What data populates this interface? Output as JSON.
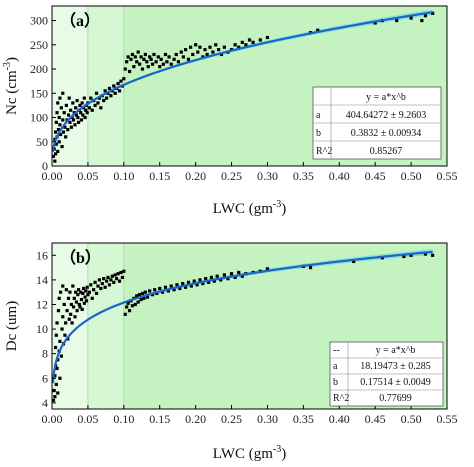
{
  "colors": {
    "band_light": "#e8fbe6",
    "band_mid": "#d6f7d3",
    "band_main": "#c4f2c0",
    "fit_line": "#1a66c8",
    "confidence": "#5fd3e8",
    "points": "#000000"
  },
  "chart_data": [
    {
      "type": "scatter",
      "panel_label": "（a）",
      "xlabel_main": "LWC (gm",
      "xlabel_sup": "-3",
      "xlabel_end": ")",
      "ylabel_main": "Nc (cm",
      "ylabel_sup": "-3",
      "ylabel_end": ")",
      "xlim": [
        0,
        0.55
      ],
      "ylim": [
        0,
        330
      ],
      "xticks": [
        "0.00",
        "0.05",
        "0.10",
        "0.15",
        "0.20",
        "0.25",
        "0.30",
        "0.35",
        "0.40",
        "0.45",
        "0.50",
        "0.55"
      ],
      "yticks": [
        "0",
        "50",
        "100",
        "150",
        "200",
        "250",
        "300"
      ],
      "ytick_values": [
        0,
        50,
        100,
        150,
        200,
        250,
        300
      ],
      "bands": [
        0.05,
        0.1
      ],
      "fit": {
        "a": 404.64272,
        "b": 0.3832
      },
      "fit_table": {
        "header_left": "",
        "header": "y = a*x^b",
        "rows": [
          {
            "label": "a",
            "value": "404.64272 ± 9.2603"
          },
          {
            "label": "b",
            "value": "0.3832 ± 0.00934"
          },
          {
            "label": "R^2",
            "value": "0.85267"
          }
        ]
      },
      "points": [
        [
          0.002,
          20
        ],
        [
          0.003,
          35
        ],
        [
          0.004,
          10
        ],
        [
          0.004,
          55
        ],
        [
          0.005,
          70
        ],
        [
          0.005,
          25
        ],
        [
          0.006,
          90
        ],
        [
          0.006,
          45
        ],
        [
          0.007,
          110
        ],
        [
          0.007,
          60
        ],
        [
          0.008,
          130
        ],
        [
          0.008,
          30
        ],
        [
          0.009,
          75
        ],
        [
          0.01,
          100
        ],
        [
          0.01,
          50
        ],
        [
          0.011,
          140
        ],
        [
          0.011,
          85
        ],
        [
          0.012,
          65
        ],
        [
          0.013,
          120
        ],
        [
          0.014,
          40
        ],
        [
          0.015,
          95
        ],
        [
          0.015,
          150
        ],
        [
          0.016,
          70
        ],
        [
          0.017,
          110
        ],
        [
          0.018,
          80
        ],
        [
          0.019,
          60
        ],
        [
          0.02,
          125
        ],
        [
          0.021,
          95
        ],
        [
          0.022,
          75
        ],
        [
          0.023,
          105
        ],
        [
          0.024,
          140
        ],
        [
          0.025,
          90
        ],
        [
          0.026,
          115
        ],
        [
          0.027,
          80
        ],
        [
          0.028,
          100
        ],
        [
          0.029,
          130
        ],
        [
          0.03,
          95
        ],
        [
          0.031,
          110
        ],
        [
          0.032,
          85
        ],
        [
          0.033,
          120
        ],
        [
          0.034,
          105
        ],
        [
          0.035,
          135
        ],
        [
          0.036,
          100
        ],
        [
          0.037,
          90
        ],
        [
          0.038,
          115
        ],
        [
          0.039,
          125
        ],
        [
          0.04,
          110
        ],
        [
          0.041,
          95
        ],
        [
          0.042,
          130
        ],
        [
          0.043,
          105
        ],
        [
          0.044,
          120
        ],
        [
          0.045,
          140
        ],
        [
          0.046,
          100
        ],
        [
          0.047,
          115
        ],
        [
          0.048,
          125
        ],
        [
          0.049,
          110
        ],
        [
          0.05,
          130
        ],
        [
          0.052,
          120
        ],
        [
          0.054,
          140
        ],
        [
          0.056,
          115
        ],
        [
          0.058,
          135
        ],
        [
          0.06,
          125
        ],
        [
          0.062,
          150
        ],
        [
          0.064,
          130
        ],
        [
          0.066,
          140
        ],
        [
          0.068,
          120
        ],
        [
          0.07,
          145
        ],
        [
          0.072,
          135
        ],
        [
          0.074,
          155
        ],
        [
          0.076,
          140
        ],
        [
          0.078,
          150
        ],
        [
          0.08,
          160
        ],
        [
          0.082,
          145
        ],
        [
          0.084,
          155
        ],
        [
          0.086,
          165
        ],
        [
          0.088,
          150
        ],
        [
          0.09,
          160
        ],
        [
          0.092,
          170
        ],
        [
          0.094,
          155
        ],
        [
          0.096,
          175
        ],
        [
          0.098,
          165
        ],
        [
          0.1,
          180
        ],
        [
          0.102,
          200
        ],
        [
          0.104,
          215
        ],
        [
          0.106,
          225
        ],
        [
          0.108,
          195
        ],
        [
          0.11,
          220
        ],
        [
          0.112,
          230
        ],
        [
          0.114,
          205
        ],
        [
          0.116,
          225
        ],
        [
          0.118,
          215
        ],
        [
          0.12,
          235
        ],
        [
          0.122,
          210
        ],
        [
          0.124,
          225
        ],
        [
          0.126,
          200
        ],
        [
          0.128,
          220
        ],
        [
          0.13,
          230
        ],
        [
          0.132,
          215
        ],
        [
          0.134,
          205
        ],
        [
          0.136,
          225
        ],
        [
          0.138,
          220
        ],
        [
          0.14,
          210
        ],
        [
          0.142,
          230
        ],
        [
          0.145,
          215
        ],
        [
          0.148,
          225
        ],
        [
          0.15,
          205
        ],
        [
          0.152,
          220
        ],
        [
          0.155,
          210
        ],
        [
          0.158,
          230
        ],
        [
          0.16,
          215
        ],
        [
          0.163,
          225
        ],
        [
          0.166,
          210
        ],
        [
          0.17,
          220
        ],
        [
          0.173,
          230
        ],
        [
          0.176,
          215
        ],
        [
          0.18,
          235
        ],
        [
          0.183,
          225
        ],
        [
          0.186,
          240
        ],
        [
          0.19,
          220
        ],
        [
          0.193,
          245
        ],
        [
          0.196,
          230
        ],
        [
          0.2,
          250
        ],
        [
          0.203,
          235
        ],
        [
          0.206,
          245
        ],
        [
          0.21,
          225
        ],
        [
          0.213,
          240
        ],
        [
          0.216,
          230
        ],
        [
          0.22,
          245
        ],
        [
          0.224,
          235
        ],
        [
          0.228,
          250
        ],
        [
          0.232,
          240
        ],
        [
          0.236,
          230
        ],
        [
          0.24,
          245
        ],
        [
          0.245,
          235
        ],
        [
          0.25,
          240
        ],
        [
          0.255,
          250
        ],
        [
          0.26,
          245
        ],
        [
          0.265,
          255
        ],
        [
          0.27,
          250
        ],
        [
          0.275,
          260
        ],
        [
          0.28,
          255
        ],
        [
          0.29,
          260
        ],
        [
          0.3,
          265
        ],
        [
          0.36,
          275
        ],
        [
          0.37,
          280
        ],
        [
          0.45,
          295
        ],
        [
          0.46,
          300
        ],
        [
          0.48,
          300
        ],
        [
          0.5,
          305
        ],
        [
          0.52,
          310
        ],
        [
          0.53,
          315
        ],
        [
          0.515,
          300
        ]
      ]
    },
    {
      "type": "scatter",
      "panel_label": "（b）",
      "xlabel_main": "LWC (gm",
      "xlabel_sup": "-3",
      "xlabel_end": ")",
      "ylabel_main": "Dc (um)",
      "ylabel_sup": "",
      "ylabel_end": "",
      "xlim": [
        0,
        0.55
      ],
      "ylim": [
        3.5,
        17
      ],
      "xticks": [
        "0.00",
        "0.05",
        "0.10",
        "0.15",
        "0.20",
        "0.25",
        "0.30",
        "0.35",
        "0.40",
        "0.45",
        "0.50",
        "0.55"
      ],
      "yticks": [
        "4",
        "6",
        "8",
        "10",
        "12",
        "14",
        "16"
      ],
      "ytick_values": [
        4,
        6,
        8,
        10,
        12,
        14,
        16
      ],
      "bands": [
        0.05,
        0.1
      ],
      "fit": {
        "a": 18.19473,
        "b": 0.17514
      },
      "fit_table": {
        "header_left": "--",
        "header": "y = a*x^b",
        "rows": [
          {
            "label": "a",
            "value": "18.19473 ± 0.285"
          },
          {
            "label": "b",
            "value": "0.17514 ± 0.0049"
          },
          {
            "label": "R^2",
            "value": "0.77699"
          }
        ]
      },
      "points": [
        [
          0.002,
          4.2
        ],
        [
          0.003,
          5.0
        ],
        [
          0.004,
          6.2
        ],
        [
          0.004,
          4.5
        ],
        [
          0.005,
          7.0
        ],
        [
          0.005,
          8.5
        ],
        [
          0.006,
          5.5
        ],
        [
          0.006,
          9.5
        ],
        [
          0.007,
          6.8
        ],
        [
          0.007,
          10.5
        ],
        [
          0.008,
          7.5
        ],
        [
          0.008,
          4.8
        ],
        [
          0.009,
          11.5
        ],
        [
          0.01,
          8.2
        ],
        [
          0.01,
          12.5
        ],
        [
          0.011,
          6.0
        ],
        [
          0.011,
          9.0
        ],
        [
          0.012,
          13.0
        ],
        [
          0.013,
          7.8
        ],
        [
          0.014,
          10.0
        ],
        [
          0.015,
          11.0
        ],
        [
          0.015,
          13.5
        ],
        [
          0.016,
          8.8
        ],
        [
          0.017,
          12.0
        ],
        [
          0.018,
          9.5
        ],
        [
          0.019,
          10.5
        ],
        [
          0.02,
          13.2
        ],
        [
          0.021,
          11.5
        ],
        [
          0.022,
          9.2
        ],
        [
          0.023,
          12.5
        ],
        [
          0.024,
          10.8
        ],
        [
          0.025,
          13.0
        ],
        [
          0.026,
          11.2
        ],
        [
          0.027,
          12.0
        ],
        [
          0.028,
          10.5
        ],
        [
          0.029,
          13.5
        ],
        [
          0.03,
          11.8
        ],
        [
          0.031,
          12.5
        ],
        [
          0.032,
          11.0
        ],
        [
          0.033,
          13.0
        ],
        [
          0.034,
          12.2
        ],
        [
          0.035,
          11.5
        ],
        [
          0.036,
          12.8
        ],
        [
          0.037,
          13.2
        ],
        [
          0.038,
          12.0
        ],
        [
          0.039,
          11.8
        ],
        [
          0.04,
          13.0
        ],
        [
          0.041,
          12.4
        ],
        [
          0.042,
          11.6
        ],
        [
          0.043,
          12.9
        ],
        [
          0.044,
          13.3
        ],
        [
          0.045,
          12.1
        ],
        [
          0.046,
          12.6
        ],
        [
          0.047,
          13.1
        ],
        [
          0.048,
          12.3
        ],
        [
          0.049,
          13.4
        ],
        [
          0.05,
          12.8
        ],
        [
          0.052,
          13.0
        ],
        [
          0.054,
          13.6
        ],
        [
          0.056,
          12.5
        ],
        [
          0.058,
          13.2
        ],
        [
          0.06,
          13.8
        ],
        [
          0.062,
          12.9
        ],
        [
          0.064,
          13.5
        ],
        [
          0.066,
          14.0
        ],
        [
          0.068,
          13.3
        ],
        [
          0.07,
          13.7
        ],
        [
          0.072,
          14.1
        ],
        [
          0.074,
          13.4
        ],
        [
          0.076,
          13.9
        ],
        [
          0.078,
          14.2
        ],
        [
          0.08,
          13.6
        ],
        [
          0.082,
          14.0
        ],
        [
          0.084,
          14.3
        ],
        [
          0.086,
          13.8
        ],
        [
          0.088,
          14.4
        ],
        [
          0.09,
          14.1
        ],
        [
          0.092,
          14.5
        ],
        [
          0.094,
          13.9
        ],
        [
          0.096,
          14.6
        ],
        [
          0.098,
          14.2
        ],
        [
          0.1,
          14.7
        ],
        [
          0.102,
          11.2
        ],
        [
          0.104,
          11.8
        ],
        [
          0.106,
          12.1
        ],
        [
          0.108,
          11.5
        ],
        [
          0.11,
          12.3
        ],
        [
          0.112,
          11.9
        ],
        [
          0.114,
          12.5
        ],
        [
          0.116,
          12.0
        ],
        [
          0.118,
          12.7
        ],
        [
          0.12,
          12.2
        ],
        [
          0.122,
          12.8
        ],
        [
          0.124,
          12.4
        ],
        [
          0.126,
          12.9
        ],
        [
          0.128,
          12.5
        ],
        [
          0.13,
          13.0
        ],
        [
          0.133,
          12.6
        ],
        [
          0.136,
          13.1
        ],
        [
          0.14,
          12.8
        ],
        [
          0.143,
          13.2
        ],
        [
          0.146,
          12.9
        ],
        [
          0.15,
          13.3
        ],
        [
          0.154,
          13.0
        ],
        [
          0.158,
          13.4
        ],
        [
          0.162,
          13.1
        ],
        [
          0.166,
          13.5
        ],
        [
          0.17,
          13.2
        ],
        [
          0.174,
          13.6
        ],
        [
          0.178,
          13.3
        ],
        [
          0.182,
          13.7
        ],
        [
          0.186,
          13.4
        ],
        [
          0.19,
          13.8
        ],
        [
          0.194,
          13.5
        ],
        [
          0.198,
          13.9
        ],
        [
          0.202,
          13.6
        ],
        [
          0.206,
          14.0
        ],
        [
          0.21,
          13.7
        ],
        [
          0.214,
          14.1
        ],
        [
          0.218,
          13.8
        ],
        [
          0.222,
          14.2
        ],
        [
          0.226,
          13.9
        ],
        [
          0.23,
          14.3
        ],
        [
          0.235,
          14.0
        ],
        [
          0.24,
          14.4
        ],
        [
          0.245,
          14.1
        ],
        [
          0.25,
          14.5
        ],
        [
          0.255,
          14.2
        ],
        [
          0.26,
          14.6
        ],
        [
          0.265,
          14.3
        ],
        [
          0.27,
          14.5
        ],
        [
          0.28,
          14.6
        ],
        [
          0.29,
          14.7
        ],
        [
          0.3,
          14.9
        ],
        [
          0.35,
          15.1
        ],
        [
          0.36,
          15.0
        ],
        [
          0.42,
          15.5
        ],
        [
          0.46,
          15.8
        ],
        [
          0.49,
          15.9
        ],
        [
          0.5,
          16.0
        ],
        [
          0.52,
          16.1
        ],
        [
          0.53,
          16.0
        ]
      ]
    }
  ]
}
